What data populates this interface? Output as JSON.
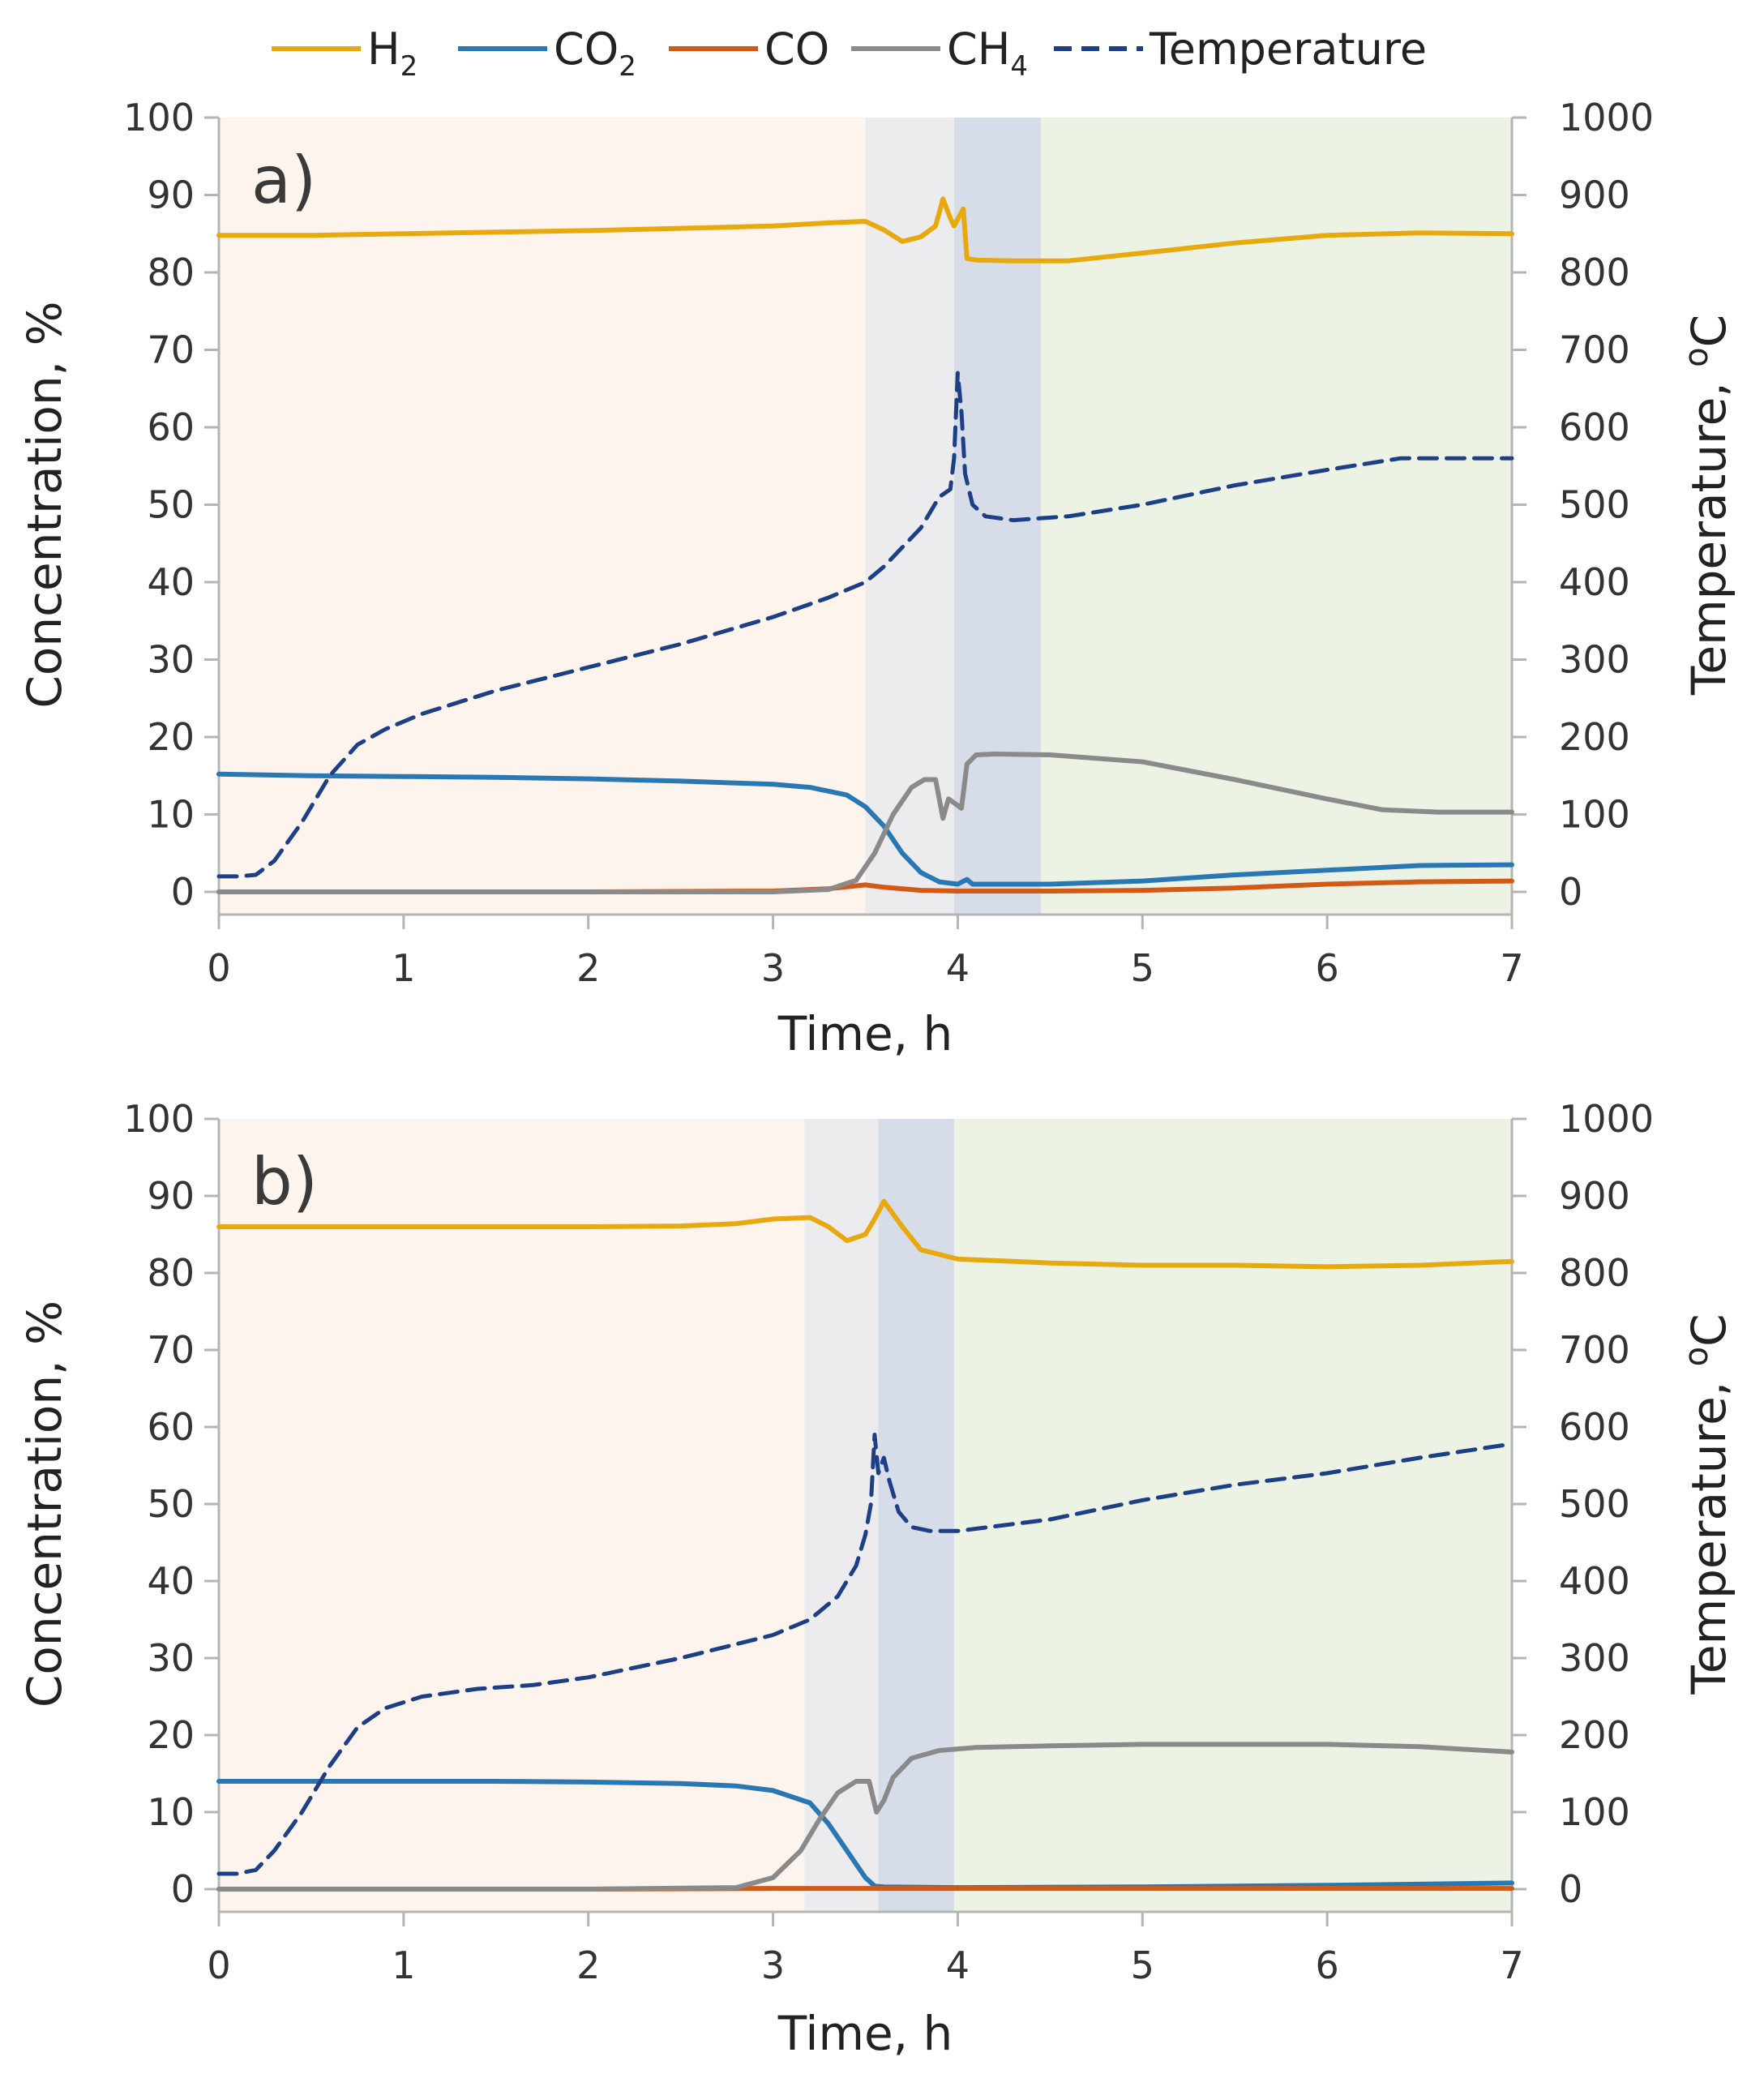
{
  "legend": [
    {
      "key": "H2",
      "label": "H",
      "sub": "2",
      "color": "#e8a90e",
      "dash": false
    },
    {
      "key": "CO2",
      "label": "CO",
      "sub": "2",
      "color": "#2a78b3",
      "dash": false
    },
    {
      "key": "CO",
      "label": "CO",
      "sub": "",
      "color": "#d35a14",
      "dash": false
    },
    {
      "key": "CH4",
      "label": "CH",
      "sub": "4",
      "color": "#8a8a8a",
      "dash": false
    },
    {
      "key": "Temperature",
      "label": "Temperature",
      "sub": "",
      "color": "#1d3f85",
      "dash": true
    }
  ],
  "chart_data": [
    {
      "type": "line",
      "panel_label": "a)",
      "xlabel": "Time, h",
      "ylabel": "Concentration, %",
      "y2label": "Temperature, ",
      "y2label_sup": "o",
      "y2label_unit": "C",
      "xlim": [
        0,
        7
      ],
      "ylim": [
        0,
        100
      ],
      "y2lim": [
        0,
        1000
      ],
      "xticks": [
        "0",
        "1",
        "2",
        "3",
        "4",
        "5",
        "6",
        "7"
      ],
      "yticks": [
        "0",
        "10",
        "20",
        "30",
        "40",
        "50",
        "60",
        "70",
        "80",
        "90",
        "100"
      ],
      "y2ticks": [
        "0",
        "100",
        "200",
        "300",
        "400",
        "500",
        "600",
        "700",
        "800",
        "900",
        "1000"
      ],
      "regions": [
        {
          "x0": 0,
          "x1": 3.5,
          "color": "#fdf4ee"
        },
        {
          "x0": 3.5,
          "x1": 3.98,
          "color": "#ececee"
        },
        {
          "x0": 3.98,
          "x1": 4.45,
          "color": "#d7dde8"
        },
        {
          "x0": 4.45,
          "x1": 7,
          "color": "#ecf3e5"
        }
      ],
      "series": [
        {
          "name": "H2",
          "axis": "left",
          "x": [
            0,
            0.5,
            1,
            1.5,
            2,
            2.5,
            3,
            3.3,
            3.5,
            3.6,
            3.7,
            3.8,
            3.88,
            3.92,
            3.96,
            3.98,
            4.03,
            4.05,
            4.1,
            4.3,
            4.6,
            5,
            5.5,
            6,
            6.5,
            7
          ],
          "y": [
            84.8,
            84.8,
            85.0,
            85.2,
            85.4,
            85.7,
            86.0,
            86.4,
            86.6,
            85.5,
            84.0,
            84.6,
            86.0,
            89.5,
            87.0,
            86.0,
            88.2,
            81.8,
            81.6,
            81.5,
            81.5,
            82.5,
            83.8,
            84.8,
            85.1,
            85.0
          ]
        },
        {
          "name": "CO2",
          "axis": "left",
          "x": [
            0,
            0.5,
            1,
            1.5,
            2,
            2.5,
            3,
            3.2,
            3.4,
            3.5,
            3.6,
            3.7,
            3.8,
            3.9,
            4.0,
            4.05,
            4.08,
            4.2,
            4.5,
            5,
            5.5,
            6,
            6.5,
            7
          ],
          "y": [
            15.2,
            15.0,
            14.9,
            14.8,
            14.6,
            14.3,
            13.9,
            13.5,
            12.5,
            11.0,
            8.5,
            5.0,
            2.5,
            1.3,
            1.0,
            1.6,
            1.0,
            1.0,
            1.0,
            1.4,
            2.2,
            2.8,
            3.4,
            3.5
          ]
        },
        {
          "name": "CO",
          "axis": "left",
          "x": [
            0,
            1,
            2,
            3,
            3.3,
            3.5,
            3.6,
            3.8,
            4.0,
            4.5,
            5,
            5.5,
            6,
            6.5,
            7
          ],
          "y": [
            0,
            0,
            0,
            0.1,
            0.4,
            0.9,
            0.6,
            0.2,
            0.1,
            0.1,
            0.2,
            0.5,
            1.0,
            1.3,
            1.4
          ]
        },
        {
          "name": "CH4",
          "axis": "left",
          "x": [
            0,
            1,
            2,
            3,
            3.3,
            3.45,
            3.55,
            3.65,
            3.75,
            3.82,
            3.88,
            3.92,
            3.95,
            3.98,
            4.02,
            4.05,
            4.1,
            4.2,
            4.5,
            5,
            5.5,
            6,
            6.3,
            6.6,
            7
          ],
          "y": [
            0,
            0,
            0,
            0,
            0.3,
            1.5,
            5.0,
            10.0,
            13.5,
            14.5,
            14.5,
            9.5,
            12.0,
            11.5,
            10.8,
            16.5,
            17.7,
            17.8,
            17.7,
            16.8,
            14.5,
            12.0,
            10.6,
            10.3,
            10.3
          ]
        },
        {
          "name": "Temperature",
          "axis": "right",
          "x": [
            0,
            0.1,
            0.2,
            0.3,
            0.45,
            0.6,
            0.75,
            0.9,
            1.1,
            1.5,
            2,
            2.5,
            3,
            3.3,
            3.5,
            3.6,
            3.7,
            3.8,
            3.9,
            3.96,
            3.98,
            4.0,
            4.02,
            4.04,
            4.08,
            4.15,
            4.3,
            4.6,
            5,
            5.5,
            6,
            6.4,
            7
          ],
          "y": [
            20,
            20,
            22,
            40,
            90,
            150,
            190,
            210,
            230,
            260,
            290,
            320,
            355,
            380,
            400,
            420,
            445,
            470,
            510,
            520,
            560,
            670,
            620,
            540,
            500,
            485,
            480,
            485,
            500,
            525,
            545,
            560,
            560
          ]
        }
      ]
    },
    {
      "type": "line",
      "panel_label": "b)",
      "xlabel": "Time, h",
      "ylabel": "Concentration, %",
      "y2label": "Temperature, ",
      "y2label_sup": "o",
      "y2label_unit": "C",
      "xlim": [
        0,
        7
      ],
      "ylim": [
        0,
        100
      ],
      "y2lim": [
        0,
        1000
      ],
      "xticks": [
        "0",
        "1",
        "2",
        "3",
        "4",
        "5",
        "6",
        "7"
      ],
      "yticks": [
        "0",
        "10",
        "20",
        "30",
        "40",
        "50",
        "60",
        "70",
        "80",
        "90",
        "100"
      ],
      "y2ticks": [
        "0",
        "100",
        "200",
        "300",
        "400",
        "500",
        "600",
        "700",
        "800",
        "900",
        "1000"
      ],
      "regions": [
        {
          "x0": 0,
          "x1": 3.17,
          "color": "#fdf4ee"
        },
        {
          "x0": 3.17,
          "x1": 3.57,
          "color": "#ececee"
        },
        {
          "x0": 3.57,
          "x1": 3.98,
          "color": "#d7dde8"
        },
        {
          "x0": 3.98,
          "x1": 7,
          "color": "#ecf3e5"
        }
      ],
      "series": [
        {
          "name": "H2",
          "axis": "left",
          "x": [
            0,
            0.5,
            1,
            1.5,
            2,
            2.5,
            2.8,
            3.0,
            3.2,
            3.3,
            3.4,
            3.5,
            3.55,
            3.6,
            3.7,
            3.8,
            4.0,
            4.5,
            5,
            5.5,
            6,
            6.5,
            7
          ],
          "y": [
            86.0,
            86.0,
            86.0,
            86.0,
            86.0,
            86.1,
            86.4,
            87.0,
            87.2,
            86.0,
            84.2,
            85.0,
            87.0,
            89.3,
            86.0,
            83.0,
            81.8,
            81.3,
            81.0,
            81.0,
            80.8,
            81.0,
            81.5
          ]
        },
        {
          "name": "CO2",
          "axis": "left",
          "x": [
            0,
            0.5,
            1,
            1.5,
            2,
            2.5,
            2.8,
            3.0,
            3.2,
            3.3,
            3.4,
            3.5,
            3.55,
            3.6,
            4.0,
            5,
            6,
            7
          ],
          "y": [
            14.0,
            14.0,
            14.0,
            14.0,
            13.9,
            13.7,
            13.4,
            12.8,
            11.2,
            8.5,
            5.0,
            1.5,
            0.4,
            0.3,
            0.2,
            0.3,
            0.5,
            0.8
          ]
        },
        {
          "name": "CO",
          "axis": "left",
          "x": [
            0,
            1,
            2,
            3,
            4,
            5,
            6,
            7
          ],
          "y": [
            0,
            0,
            0,
            0.1,
            0.1,
            0.1,
            0.1,
            0.1
          ]
        },
        {
          "name": "CH4",
          "axis": "left",
          "x": [
            0,
            1,
            2,
            2.8,
            3.0,
            3.15,
            3.25,
            3.35,
            3.45,
            3.52,
            3.56,
            3.6,
            3.65,
            3.75,
            3.9,
            4.1,
            4.5,
            5,
            5.5,
            6,
            6.5,
            7
          ],
          "y": [
            0,
            0,
            0,
            0.2,
            1.5,
            5.0,
            9.0,
            12.5,
            14.0,
            14.0,
            10.0,
            11.5,
            14.5,
            17.0,
            18.0,
            18.4,
            18.6,
            18.8,
            18.8,
            18.8,
            18.5,
            17.8
          ]
        },
        {
          "name": "Temperature",
          "axis": "right",
          "x": [
            0,
            0.1,
            0.2,
            0.3,
            0.45,
            0.6,
            0.75,
            0.9,
            1.1,
            1.4,
            1.7,
            2,
            2.5,
            3,
            3.2,
            3.35,
            3.45,
            3.5,
            3.53,
            3.55,
            3.57,
            3.6,
            3.63,
            3.68,
            3.75,
            3.85,
            4.0,
            4.5,
            5,
            5.5,
            6,
            6.5,
            7
          ],
          "y": [
            20,
            20,
            25,
            50,
            100,
            160,
            210,
            235,
            250,
            260,
            265,
            275,
            300,
            330,
            350,
            380,
            420,
            460,
            500,
            590,
            540,
            560,
            530,
            490,
            470,
            465,
            465,
            480,
            505,
            525,
            540,
            560,
            578
          ]
        }
      ]
    }
  ]
}
